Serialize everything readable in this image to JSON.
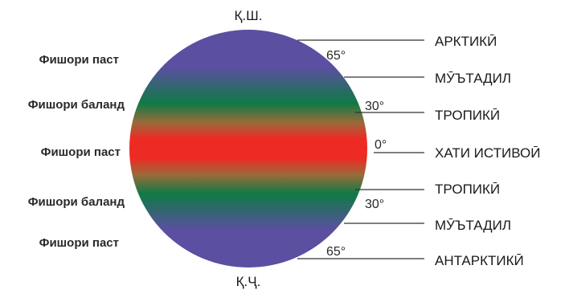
{
  "poles": {
    "north": "Қ.Ш.",
    "south": "Қ.Ҷ."
  },
  "pressure_labels": [
    "Фишори паст",
    "Фишори баланд",
    "Фишори паст",
    "Фишори баланд",
    "Фишори паст"
  ],
  "latitudes": [
    "65°",
    "30°",
    "0°",
    "30°",
    "65°"
  ],
  "zones": [
    "АРКТИКӢ",
    "МӮЪТАДИЛ",
    "ТРОПИКӢ",
    "ХАТИ ИСТИВОӢ",
    "ТРОПИКӢ",
    "МӮЪТАДИЛ",
    "АНТАРКТИКӢ"
  ],
  "colors": {
    "polar": "#5a4fa0",
    "temperate": "#0f7a45",
    "tropical": "#9a6a3a",
    "equatorial": "#ee2a24"
  }
}
